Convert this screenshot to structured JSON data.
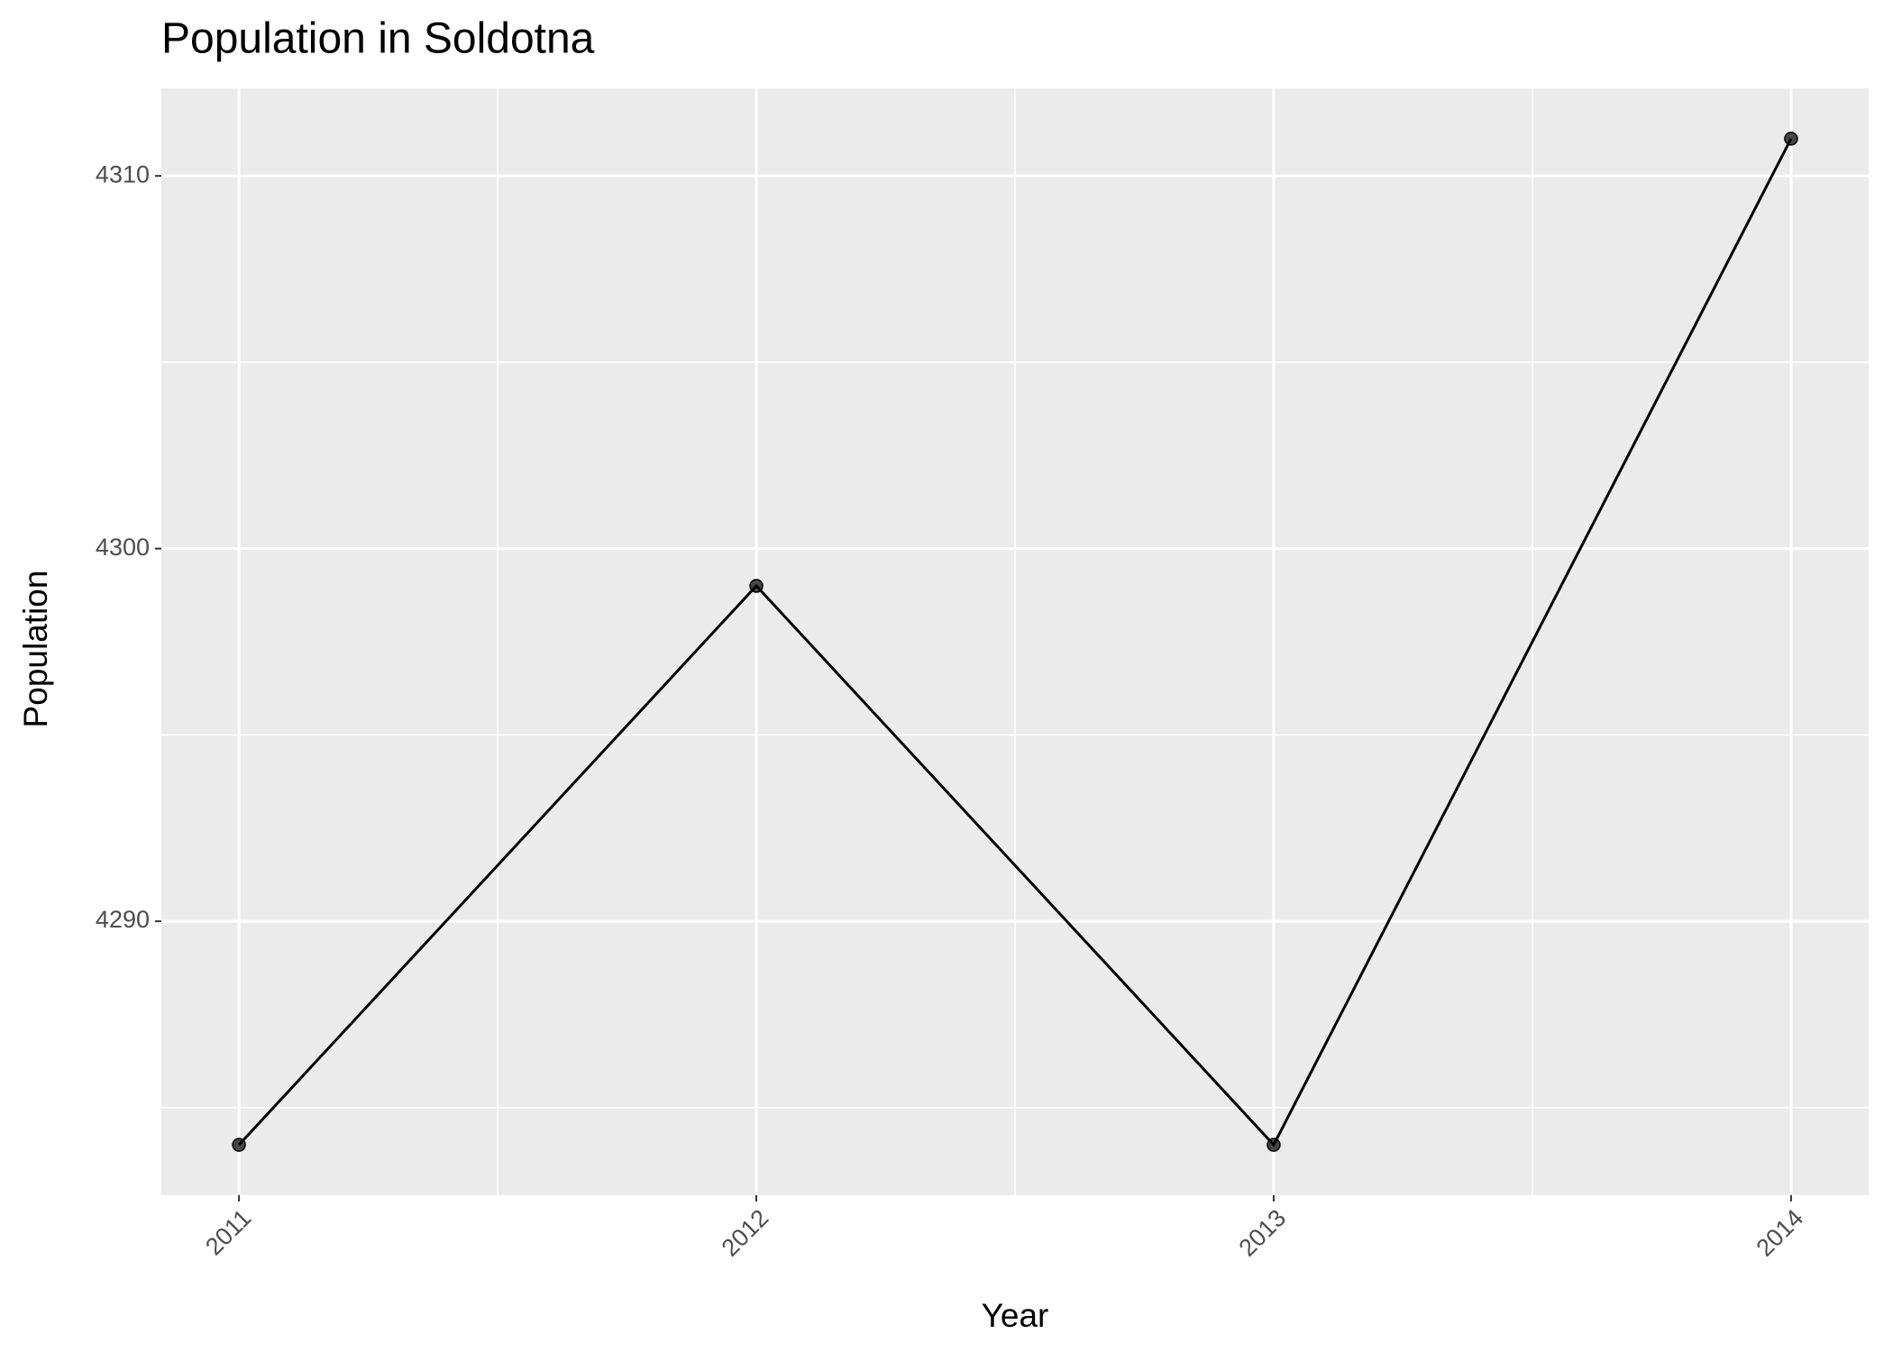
{
  "chart_data": {
    "type": "line",
    "title": "Population in Soldotna",
    "x_label": "Year",
    "y_label": "Population",
    "x": [
      2011,
      2012,
      2013,
      2014
    ],
    "series": [
      {
        "name": "Population",
        "color": "#000000",
        "values": [
          4284,
          4299,
          4284,
          4311
        ]
      }
    ],
    "xlim": [
      2010.85,
      2014.15
    ],
    "xticks": [
      2011,
      2012,
      2013,
      2014
    ],
    "x_minor_ticks": [
      2011.5,
      2012.5,
      2013.5
    ],
    "ylim": [
      4282.65,
      4312.35
    ],
    "yticks": [
      4290,
      4300,
      4310
    ],
    "y_minor_ticks": [
      4285,
      4295,
      4305
    ],
    "grid": true
  }
}
